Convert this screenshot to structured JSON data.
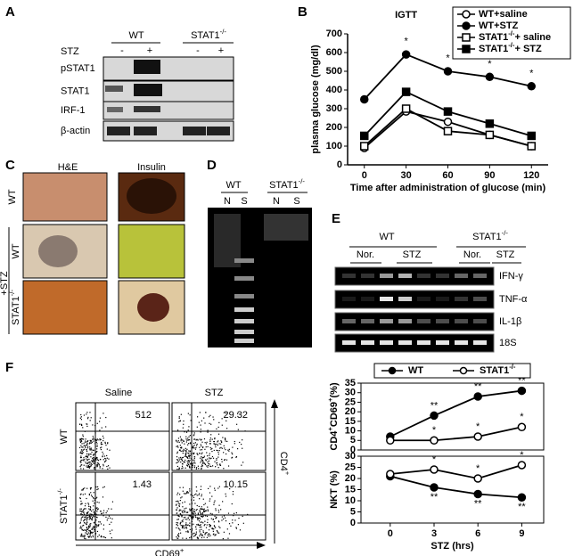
{
  "panels": {
    "A": {
      "label": "A",
      "groups": [
        "WT",
        [
          "STAT1",
          {
            "sup": "-/-"
          }
        ]
      ],
      "treatment": "STZ",
      "signs": [
        "-",
        "+",
        "-",
        "+"
      ],
      "bands": [
        "pSTAT1",
        "STAT1",
        "IRF-1",
        "β-actin"
      ]
    },
    "B": {
      "label": "B",
      "chart": {
        "type": "line",
        "annotation": "IGTT",
        "xlabel": "Time after administration of glucose (min)",
        "ylabel": "plasma glucose (mg/dl)",
        "x": [
          0,
          30,
          60,
          90,
          120
        ],
        "xlim": [
          -12,
          132
        ],
        "xticks": [
          0,
          30,
          60,
          90,
          120
        ],
        "ylim": [
          0,
          700
        ],
        "yticks": [
          0,
          100,
          200,
          300,
          400,
          500,
          600,
          700
        ],
        "series": [
          {
            "name": "WT+saline",
            "color": "#000000",
            "marker": "circle",
            "filled": false,
            "values": [
              90,
              285,
              230,
              160,
              100
            ]
          },
          {
            "name": "WT+STZ",
            "color": "#000000",
            "marker": "circle",
            "filled": true,
            "values": [
              350,
              590,
              500,
              470,
              420
            ],
            "significance": [
              null,
              "*",
              "*",
              "*",
              "*"
            ]
          },
          {
            "name": [
              "STAT1",
              {
                "sup": "-/-"
              },
              "+ saline"
            ],
            "color": "#000000",
            "marker": "square",
            "filled": false,
            "values": [
              100,
              300,
              180,
              160,
              100
            ]
          },
          {
            "name": [
              "STAT1",
              {
                "sup": "-/-"
              },
              "+ STZ"
            ],
            "color": "#000000",
            "marker": "square",
            "filled": true,
            "values": [
              155,
              390,
              285,
              220,
              155
            ]
          }
        ]
      }
    },
    "C": {
      "label": "C",
      "columns": [
        "H&E",
        "Insulin"
      ],
      "rows": [
        "WT",
        "WT",
        [
          "STAT1",
          {
            "sup": "-/-"
          }
        ]
      ],
      "group": "+STZ"
    },
    "D": {
      "label": "D",
      "groups": [
        "WT",
        [
          "STAT1",
          {
            "sup": "-/-"
          }
        ]
      ],
      "lanes": [
        "N",
        "S",
        "N",
        "S"
      ]
    },
    "E": {
      "label": "E",
      "groups": [
        "WT",
        [
          "STAT1",
          {
            "sup": "-/-"
          }
        ]
      ],
      "lanes": [
        "Nor.",
        "STZ",
        "Nor.",
        "STZ"
      ],
      "genes": [
        "IFN-γ",
        "TNF-α",
        "IL-1β",
        "18S"
      ]
    },
    "F": {
      "label": "F",
      "flow": {
        "columns": [
          "Saline",
          "STZ"
        ],
        "rows": [
          "WT",
          [
            "STAT1",
            {
              "sup": "-/-"
            }
          ]
        ],
        "percentages": [
          [
            512,
            29.32
          ],
          [
            1.43,
            10.15
          ]
        ],
        "y_axis": [
          "CD4",
          {
            "sup": "+"
          }
        ],
        "x_axis": [
          "CD69",
          {
            "sup": "+"
          }
        ]
      },
      "charts": [
        {
          "type": "line",
          "ylabel": [
            "CD4",
            {
              "sup": "+"
            },
            "CD69",
            {
              "sup": "+"
            },
            "(%)"
          ],
          "x": [
            0,
            3,
            6,
            9
          ],
          "xlim": [
            -2,
            10.5
          ],
          "ylim": [
            0,
            35
          ],
          "yticks": [
            0,
            5,
            10,
            15,
            20,
            25,
            30,
            35
          ],
          "series": [
            {
              "name": "WT",
              "color": "#000000",
              "marker": "circle",
              "filled": true,
              "values": [
                7,
                18,
                28,
                31
              ],
              "significance": [
                null,
                "**",
                "**",
                "**"
              ]
            },
            {
              "name": [
                "STAT1",
                {
                  "sup": "-/-"
                }
              ],
              "color": "#000000",
              "marker": "circle",
              "filled": false,
              "values": [
                5,
                5,
                7,
                12
              ],
              "significance": [
                null,
                "*",
                "*",
                "*"
              ]
            }
          ]
        },
        {
          "type": "line",
          "ylabel": "NKT (%)",
          "xlabel": "STZ (hrs)",
          "x": [
            0,
            3,
            6,
            9
          ],
          "xlim": [
            -2,
            10.5
          ],
          "xticks": [
            0,
            3,
            6,
            9
          ],
          "ylim": [
            0,
            30
          ],
          "yticks": [
            0,
            5,
            10,
            15,
            20,
            25,
            30
          ],
          "series": [
            {
              "name": "WT",
              "color": "#000000",
              "marker": "circle",
              "filled": true,
              "values": [
                21,
                16,
                13,
                11.5
              ],
              "significance": [
                null,
                "**",
                "**",
                "**"
              ]
            },
            {
              "name": [
                "STAT1",
                {
                  "sup": "-/-"
                }
              ],
              "color": "#000000",
              "marker": "circle",
              "filled": false,
              "values": [
                22,
                24,
                20,
                26
              ],
              "significance": [
                null,
                "*",
                "*",
                "*"
              ]
            }
          ]
        }
      ]
    }
  }
}
